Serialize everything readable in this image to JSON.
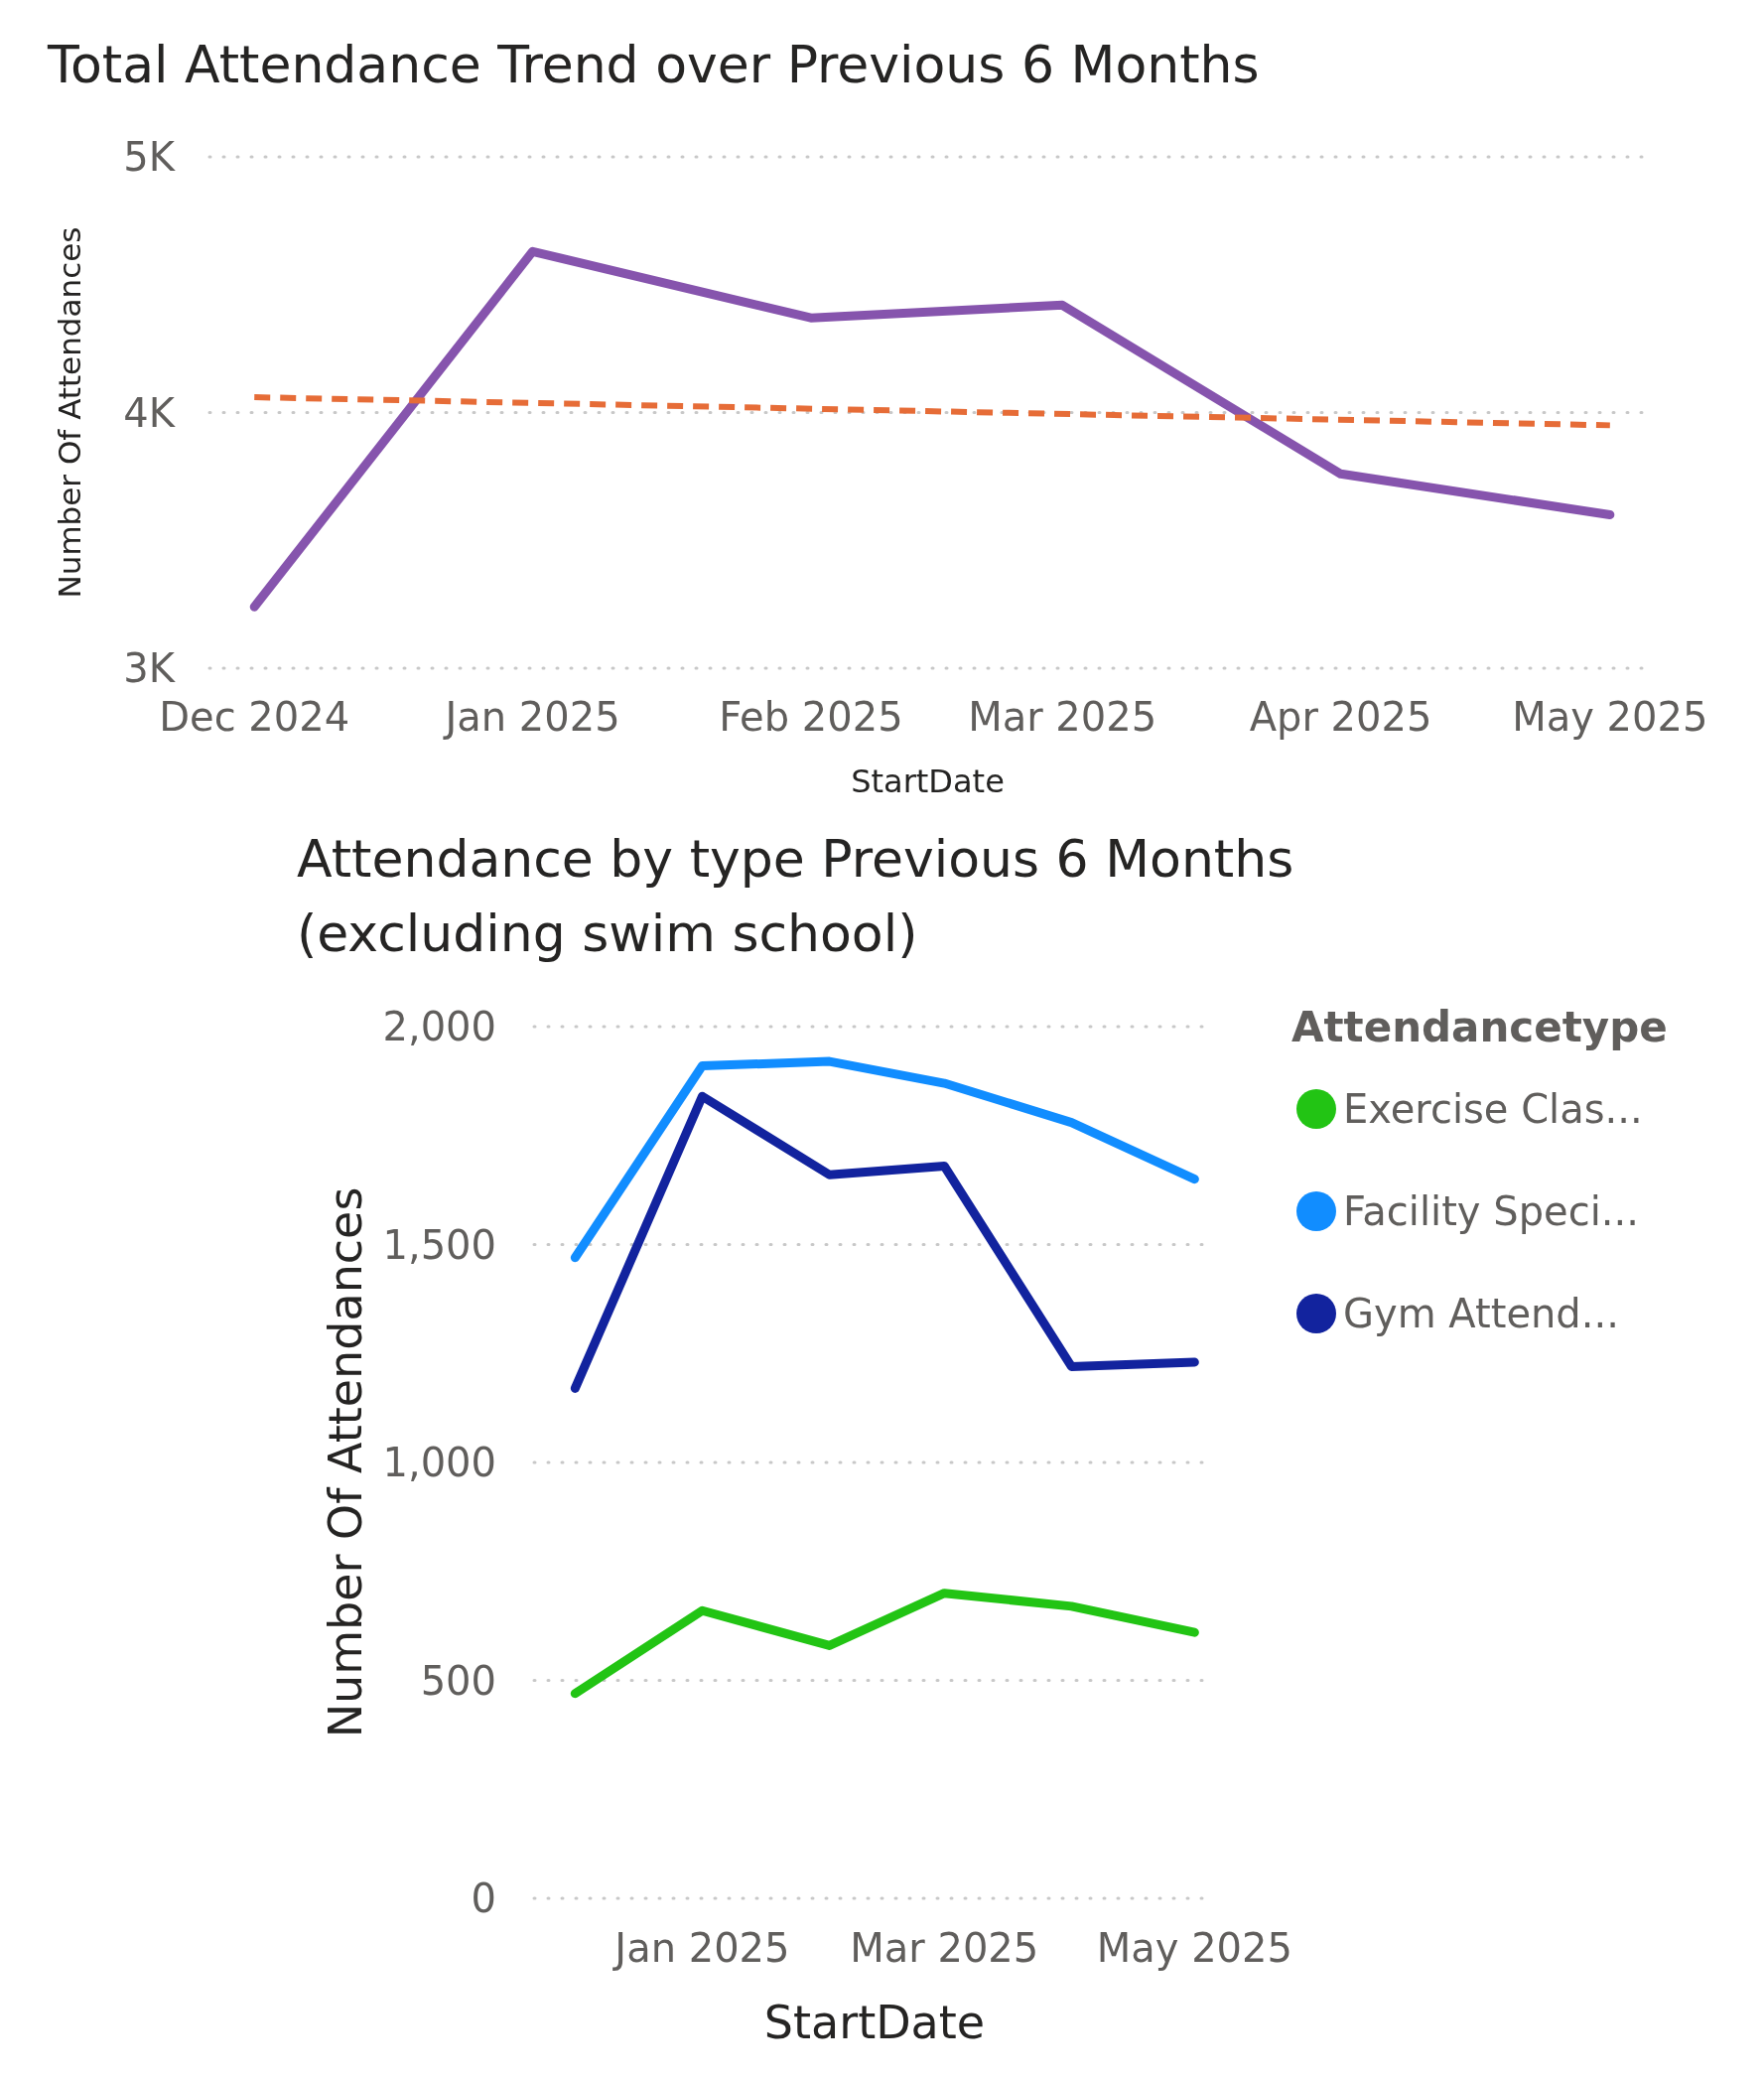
{
  "chart_data": [
    {
      "type": "line",
      "title": "Total Attendance Trend over Previous 6 Months",
      "xlabel": "StartDate",
      "ylabel": "Number Of Attendances",
      "x": [
        "2024-12",
        "2025-01",
        "2025-02",
        "2025-03",
        "2025-04",
        "2025-05"
      ],
      "xlim": [
        "2024-11-26",
        "2025-05-05"
      ],
      "xticks": [
        {
          "value": "2024-12",
          "label": "Dec 2024"
        },
        {
          "value": "2025-01",
          "label": "Jan 2025"
        },
        {
          "value": "2025-02",
          "label": "Feb 2025"
        },
        {
          "value": "2025-03",
          "label": "Mar 2025"
        },
        {
          "value": "2025-04",
          "label": "Apr 2025"
        },
        {
          "value": "2025-05",
          "label": "May 2025"
        }
      ],
      "ylim": [
        3000,
        5000
      ],
      "yticks": [
        {
          "value": 3000,
          "label": "3K"
        },
        {
          "value": 4000,
          "label": "4K"
        },
        {
          "value": 5000,
          "label": "5K"
        }
      ],
      "grid": "y",
      "legend": false,
      "series": [
        {
          "color": "#8654ad",
          "values": [
            3240,
            4630,
            4370,
            4420,
            3760,
            3600
          ],
          "line_style": "solid"
        },
        {
          "type": "line",
          "x": [
            "2024-12",
            "2025-05"
          ],
          "color": "#e66c37",
          "values": [
            4060,
            3950
          ],
          "line_style": "dashed"
        }
      ]
    },
    {
      "type": "line",
      "title": "Attendance by type Previous 6 Months\n(excluding swim school)",
      "xlabel": "StartDate",
      "ylabel": "Number Of Attendances",
      "legend_title": "Attendancetype",
      "legend": "right",
      "x": [
        "2024-12",
        "2025-01",
        "2025-02",
        "2025-03",
        "2025-04",
        "2025-05"
      ],
      "xlim": [
        "2024-11-21",
        "2025-05-06"
      ],
      "xticks": [
        {
          "value": "2025-01",
          "label": "Jan 2025"
        },
        {
          "value": "2025-03",
          "label": "Mar 2025"
        },
        {
          "value": "2025-05",
          "label": "May 2025"
        }
      ],
      "ylim": [
        0,
        2000
      ],
      "yticks": [
        {
          "value": 0,
          "label": "0"
        },
        {
          "value": 500,
          "label": "500"
        },
        {
          "value": 1000,
          "label": "1,000"
        },
        {
          "value": 1500,
          "label": "1,500"
        },
        {
          "value": 2000,
          "label": "2,000"
        }
      ],
      "grid": "y",
      "series": [
        {
          "name": "Exercise Clas...",
          "color": "#22c414",
          "values": [
            470,
            660,
            580,
            700,
            670,
            610
          ]
        },
        {
          "name": "Facility Speci...",
          "color": "#118dff",
          "values": [
            1470,
            1910,
            1920,
            1870,
            1780,
            1650
          ]
        },
        {
          "name": "Gym Attend...",
          "color": "#12239e",
          "values": [
            1170,
            1840,
            1660,
            1680,
            1220,
            1230
          ]
        }
      ]
    }
  ]
}
